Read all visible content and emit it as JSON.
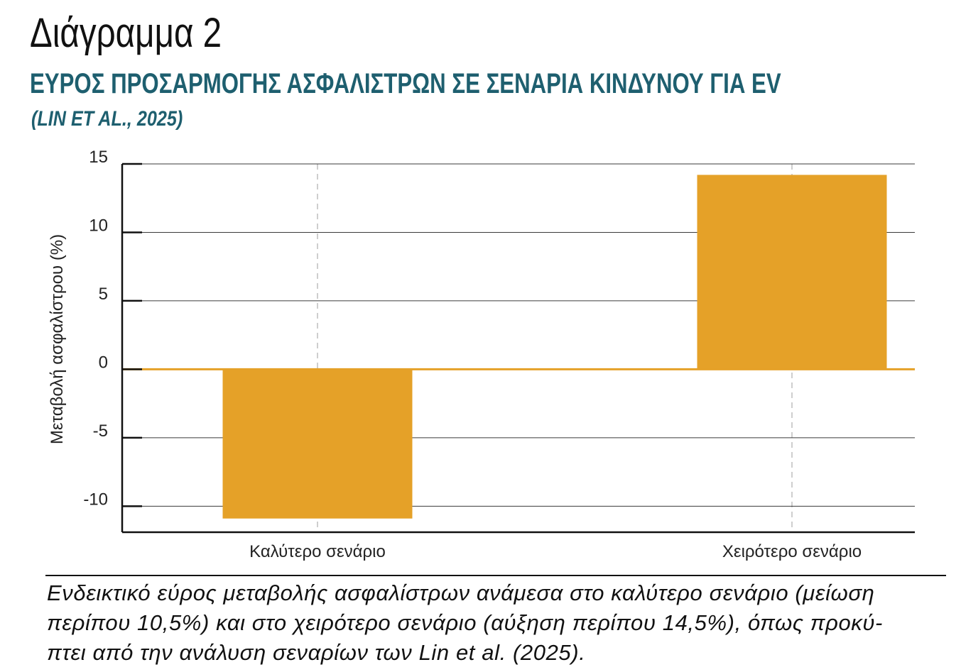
{
  "figure_label": "Διάγραμμα 2",
  "header": {
    "title": "ΕΥΡΟΣ ΠΡΟΣΑΡΜΟΓΗΣ ΑΣΦΑΛΙΣΤΡΩΝ ΣΕ ΣΕΝΑΡΙΑ ΚΙΝΔΥΝΟΥ ΓΙΑ EV",
    "subtitle": "(LIN ET AL., 2025)"
  },
  "colors": {
    "bar": "#e5a128",
    "title": "#1e5f6f"
  },
  "chart_data": {
    "type": "bar",
    "categories": [
      "Καλύτερο σενάριο",
      "Χειρότερο σενάριο"
    ],
    "values": [
      -10.9,
      14.2
    ],
    "xlabel": "",
    "ylabel": "Μεταβολή ασφαλίστρου (%)",
    "ylim": [
      -11.9,
      15
    ],
    "yticks": [
      15,
      10,
      5,
      0,
      -5,
      -10
    ],
    "ytick_labels": [
      "15",
      "10",
      "5",
      "0",
      "-5",
      "-10"
    ],
    "grid": true,
    "zero_line": true
  },
  "caption": {
    "lines": [
      "Ενδεικτικό εύρος μεταβολής ασφαλίστρων ανάμεσα στο καλύτερο σενάριο (μείωση",
      "περίπου 10,5%) και στο χειρότερο σενάριο (αύξηση περίπου 14,5%), όπως προκύ-",
      "πτει από την ανάλυση σεναρίων των Lin et al. (2025)."
    ]
  }
}
